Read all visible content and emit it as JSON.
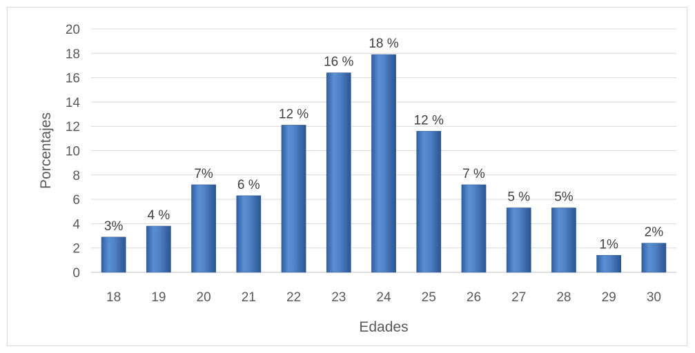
{
  "chart_data": {
    "type": "bar",
    "title": "",
    "xlabel": "Edades",
    "ylabel": "Porcentajes",
    "ylim": [
      0,
      20
    ],
    "ytick_step": 2,
    "yticks": [
      "0",
      "2",
      "4",
      "6",
      "8",
      "10",
      "12",
      "14",
      "16",
      "18",
      "20"
    ],
    "categories": [
      "18",
      "19",
      "20",
      "21",
      "22",
      "23",
      "24",
      "25",
      "26",
      "27",
      "28",
      "29",
      "30"
    ],
    "values": [
      2.9,
      3.8,
      7.2,
      6.3,
      12.1,
      16.4,
      17.9,
      11.6,
      7.2,
      5.3,
      5.3,
      1.4,
      2.4
    ],
    "data_labels": [
      "3%",
      "4 %",
      "7%",
      "6 %",
      "12 %",
      "16 %",
      "18 %",
      "12 %",
      "7 %",
      "5 %",
      "5%",
      "1%",
      "2%"
    ],
    "grid": true,
    "legend": "none",
    "bar_color": "#4f81bd"
  }
}
